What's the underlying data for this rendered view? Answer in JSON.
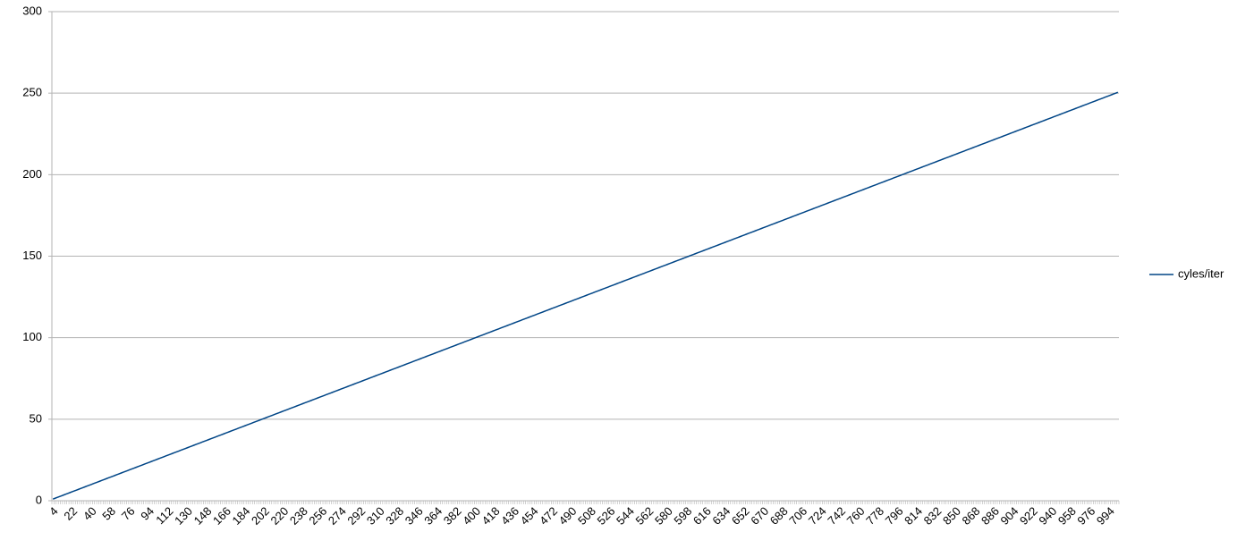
{
  "chart_data": {
    "type": "line",
    "categories": [
      "4",
      null,
      null,
      null,
      null,
      null,
      null,
      null,
      null,
      "22",
      null,
      null,
      null,
      null,
      null,
      null,
      null,
      null,
      "40",
      null,
      null,
      null,
      null,
      null,
      null,
      null,
      null,
      "58",
      null,
      null,
      null,
      null,
      null,
      null,
      null,
      null,
      "76",
      null,
      null,
      null,
      null,
      null,
      null,
      null,
      null,
      "94",
      null,
      null,
      null,
      null,
      null,
      null,
      null,
      null,
      "112",
      null,
      null,
      null,
      null,
      null,
      null,
      null,
      null,
      "130",
      null,
      null,
      null,
      null,
      null,
      null,
      null,
      null,
      "148",
      null,
      null,
      null,
      null,
      null,
      null,
      null,
      null,
      "166",
      null,
      null,
      null,
      null,
      null,
      null,
      null,
      null,
      "184",
      null,
      null,
      null,
      null,
      null,
      null,
      null,
      null,
      "202",
      null,
      null,
      null,
      null,
      null,
      null,
      null,
      null,
      "220",
      null,
      null,
      null,
      null,
      null,
      null,
      null,
      null,
      "238",
      null,
      null,
      null,
      null,
      null,
      null,
      null,
      null,
      "256",
      null,
      null,
      null,
      null,
      null,
      null,
      null,
      null,
      "274",
      null,
      null,
      null,
      null,
      null,
      null,
      null,
      null,
      "292",
      null,
      null,
      null,
      null,
      null,
      null,
      null,
      null,
      "310",
      null,
      null,
      null,
      null,
      null,
      null,
      null,
      null,
      "328",
      null,
      null,
      null,
      null,
      null,
      null,
      null,
      null,
      "346",
      null,
      null,
      null,
      null,
      null,
      null,
      null,
      null,
      "364",
      null,
      null,
      null,
      null,
      null,
      null,
      null,
      null,
      "382",
      null,
      null,
      null,
      null,
      null,
      null,
      null,
      null,
      "400",
      null,
      null,
      null,
      null,
      null,
      null,
      null,
      null,
      "418",
      null,
      null,
      null,
      null,
      null,
      null,
      null,
      null,
      "436",
      null,
      null,
      null,
      null,
      null,
      null,
      null,
      null,
      "454",
      null,
      null,
      null,
      null,
      null,
      null,
      null,
      null,
      "472",
      null,
      null,
      null,
      null,
      null,
      null,
      null,
      null,
      "490",
      null,
      null,
      null,
      null,
      null,
      null,
      null,
      null,
      "508",
      null,
      null,
      null,
      null,
      null,
      null,
      null,
      null,
      "526",
      null,
      null,
      null,
      null,
      null,
      null,
      null,
      null,
      "544",
      null,
      null,
      null,
      null,
      null,
      null,
      null,
      null,
      "562",
      null,
      null,
      null,
      null,
      null,
      null,
      null,
      null,
      "580",
      null,
      null,
      null,
      null,
      null,
      null,
      null,
      null,
      "598",
      null,
      null,
      null,
      null,
      null,
      null,
      null,
      null,
      "616",
      null,
      null,
      null,
      null,
      null,
      null,
      null,
      null,
      "634",
      null,
      null,
      null,
      null,
      null,
      null,
      null,
      null,
      "652",
      null,
      null,
      null,
      null,
      null,
      null,
      null,
      null,
      "670",
      null,
      null,
      null,
      null,
      null,
      null,
      null,
      null,
      "688",
      null,
      null,
      null,
      null,
      null,
      null,
      null,
      null,
      "706",
      null,
      null,
      null,
      null,
      null,
      null,
      null,
      null,
      "724",
      null,
      null,
      null,
      null,
      null,
      null,
      null,
      null,
      "742",
      null,
      null,
      null,
      null,
      null,
      null,
      null,
      null,
      "760",
      null,
      null,
      null,
      null,
      null,
      null,
      null,
      null,
      "778",
      null,
      null,
      null,
      null,
      null,
      null,
      null,
      null,
      "796",
      null,
      null,
      null,
      null,
      null,
      null,
      null,
      null,
      "814",
      null,
      null,
      null,
      null,
      null,
      null,
      null,
      null,
      "832",
      null,
      null,
      null,
      null,
      null,
      null,
      null,
      null,
      "850",
      null,
      null,
      null,
      null,
      null,
      null,
      null,
      null,
      "868",
      null,
      null,
      null,
      null,
      null,
      null,
      null,
      null,
      "886",
      null,
      null,
      null,
      null,
      null,
      null,
      null,
      null,
      "904",
      null,
      null,
      null,
      null,
      null,
      null,
      null,
      null,
      "922",
      null,
      null,
      null,
      null,
      null,
      null,
      null,
      null,
      "940",
      null,
      null,
      null,
      null,
      null,
      null,
      null,
      null,
      "958",
      null,
      null,
      null,
      null,
      null,
      null,
      null,
      null,
      "976",
      null,
      null,
      null,
      null,
      null,
      null,
      null,
      null,
      "994",
      null,
      null,
      null,
      null
    ],
    "series": [
      {
        "name": "cyles/iter",
        "color": "#004586",
        "values": [
          1,
          1.5,
          2,
          2.5,
          3,
          3.5,
          4,
          4.5,
          5,
          5.5,
          6,
          6.5,
          7,
          7.5,
          8,
          8.5,
          9,
          9.5,
          10,
          10.5,
          11,
          11.5,
          12,
          12.5,
          13,
          13.5,
          14,
          14.5,
          15,
          15.5,
          16,
          16.5,
          17,
          17.5,
          18,
          18.5,
          19,
          19.5,
          20,
          20.5,
          21,
          21.5,
          22,
          22.5,
          23,
          23.5,
          24,
          24.5,
          25,
          25.5,
          26,
          26.5,
          27,
          27.5,
          28,
          28.5,
          29,
          29.5,
          30,
          30.5,
          31,
          31.5,
          32,
          32.5,
          33,
          33.5,
          34,
          34.5,
          35,
          35.5,
          36,
          36.5,
          37,
          37.5,
          38,
          38.5,
          39,
          39.5,
          40,
          40.5,
          41,
          41.5,
          42,
          42.5,
          43,
          43.5,
          44,
          44.5,
          45,
          45.5,
          46,
          46.5,
          47,
          47.5,
          48,
          48.5,
          49,
          49.5,
          50,
          50.5,
          51,
          51.5,
          52,
          52.5,
          53,
          53.5,
          54,
          54.5,
          55,
          55.5,
          56,
          56.5,
          57,
          57.5,
          58,
          58.5,
          59,
          59.5,
          60,
          60.5,
          61,
          61.5,
          62,
          62.5,
          63,
          63.5,
          64,
          64.5,
          65,
          65.5,
          66,
          66.5,
          67,
          67.5,
          68,
          68.5,
          69,
          69.5,
          70,
          70.5,
          71,
          71.5,
          72,
          72.5,
          73,
          73.5,
          74,
          74.5,
          75,
          75.5,
          76,
          76.5,
          77,
          77.5,
          78,
          78.5,
          79,
          79.5,
          80,
          80.5,
          81,
          81.5,
          82,
          82.5,
          83,
          83.5,
          84,
          84.5,
          85,
          85.5,
          86,
          86.5,
          87,
          87.5,
          88,
          88.5,
          89,
          89.5,
          90,
          90.5,
          91,
          91.5,
          92,
          92.5,
          93,
          93.5,
          94,
          94.5,
          95,
          95.5,
          96,
          96.5,
          97,
          97.5,
          98,
          98.5,
          99,
          99.5,
          100,
          100.5,
          101,
          101.5,
          102,
          102.5,
          103,
          103.5,
          104,
          104.5,
          105,
          105.5,
          106,
          106.5,
          107,
          107.5,
          108,
          108.5,
          109,
          109.5,
          110,
          110.5,
          111,
          111.5,
          112,
          112.5,
          113,
          113.5,
          114,
          114.5,
          115,
          115.5,
          116,
          116.5,
          117,
          117.5,
          118,
          118.5,
          119,
          119.5,
          120,
          120.5,
          121,
          121.5,
          122,
          122.5,
          123,
          123.5,
          124,
          124.5,
          125,
          125.5,
          126,
          126.5,
          127,
          127.5,
          128,
          128.5,
          129,
          129.5,
          130,
          130.5,
          131,
          131.5,
          132,
          132.5,
          133,
          133.5,
          134,
          134.5,
          135,
          135.5,
          136,
          136.5,
          137,
          137.5,
          138,
          138.5,
          139,
          139.5,
          140,
          140.5,
          141,
          141.5,
          142,
          142.5,
          143,
          143.5,
          144,
          144.5,
          145,
          145.5,
          146,
          146.5,
          147,
          147.5,
          148,
          148.5,
          149,
          149.5,
          150,
          150.5,
          151,
          151.5,
          152,
          152.5,
          153,
          153.5,
          154,
          154.5,
          155,
          155.5,
          156,
          156.5,
          157,
          157.5,
          158,
          158.5,
          159,
          159.5,
          160,
          160.5,
          161,
          161.5,
          162,
          162.5,
          163,
          163.5,
          164,
          164.5,
          165,
          165.5,
          166,
          166.5,
          167,
          167.5,
          168,
          168.5,
          169,
          169.5,
          170,
          170.5,
          171,
          171.5,
          172,
          172.5,
          173,
          173.5,
          174,
          174.5,
          175,
          175.5,
          176,
          176.5,
          177,
          177.5,
          178,
          178.5,
          179,
          179.5,
          180,
          180.5,
          181,
          181.5,
          182,
          182.5,
          183,
          183.5,
          184,
          184.5,
          185,
          185.5,
          186,
          186.5,
          187,
          187.5,
          188,
          188.5,
          189,
          189.5,
          190,
          190.5,
          191,
          191.5,
          192,
          192.5,
          193,
          193.5,
          194,
          194.5,
          195,
          195.5,
          196,
          196.5,
          197,
          197.5,
          198,
          198.5,
          199,
          199.5,
          200,
          200.5,
          201,
          201.5,
          202,
          202.5,
          203,
          203.5,
          204,
          204.5,
          205,
          205.5,
          206,
          206.5,
          207,
          207.5,
          208,
          208.5,
          209,
          209.5,
          210,
          210.5,
          211,
          211.5,
          212,
          212.5,
          213,
          213.5,
          214,
          214.5,
          215,
          215.5,
          216,
          216.5,
          217,
          217.5,
          218,
          218.5,
          219,
          219.5,
          220,
          220.5,
          221,
          221.5,
          222,
          222.5,
          223,
          223.5,
          224,
          224.5,
          225,
          225.5,
          226,
          226.5,
          227,
          227.5,
          228,
          228.5,
          229,
          229.5,
          230,
          230.5,
          231,
          231.5,
          232,
          232.5,
          233,
          233.5,
          234,
          234.5,
          235,
          235.5,
          236,
          236.5,
          237,
          237.5,
          238,
          238.5,
          239,
          239.5,
          240,
          240.5,
          241,
          241.5,
          242,
          242.5,
          243,
          243.5,
          244,
          244.5,
          245,
          245.5,
          246,
          246.5,
          247,
          247.5,
          248,
          248.5,
          249,
          249.5,
          250,
          250.5
        ]
      }
    ],
    "ylim": [
      0,
      300
    ],
    "yticks": [
      0,
      50,
      100,
      150,
      200,
      250,
      300
    ],
    "grid": true,
    "legend": "right"
  }
}
